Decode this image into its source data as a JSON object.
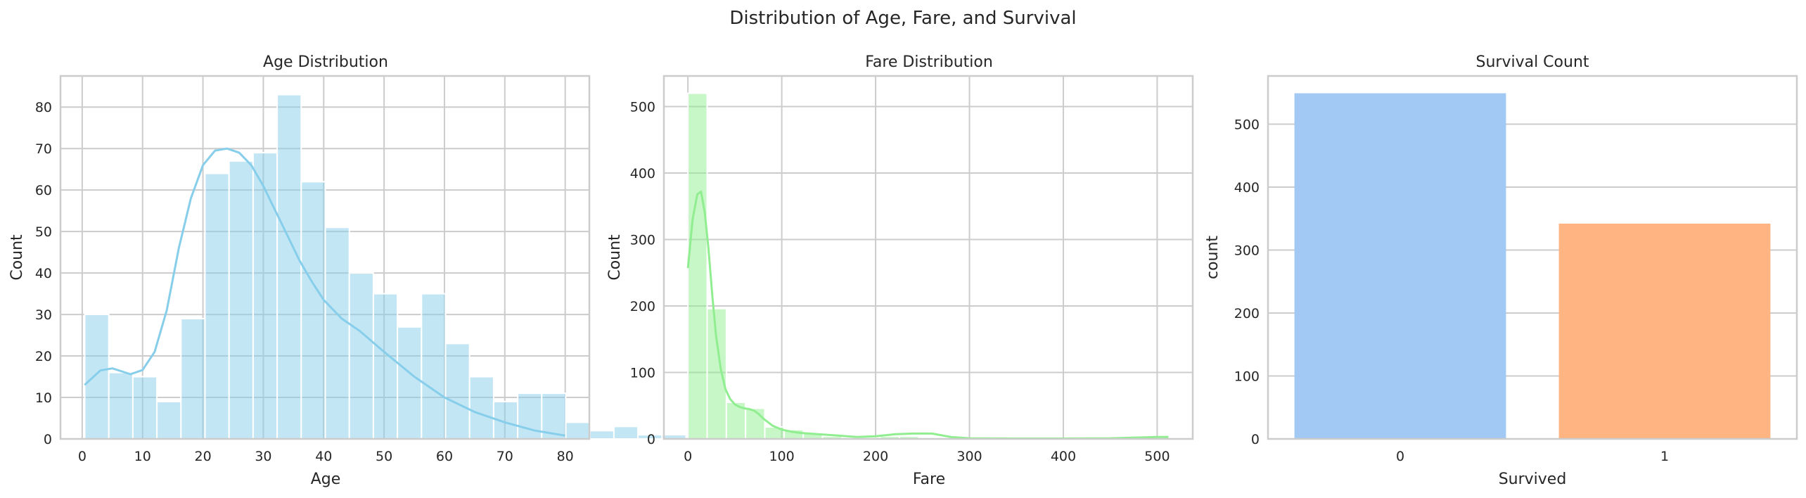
{
  "figure": {
    "suptitle": "Distribution of Age, Fare, and Survival"
  },
  "chart_data": [
    {
      "type": "bar",
      "subtype": "histogram",
      "title": "Age Distribution",
      "xlabel": "Age",
      "ylabel": "Count",
      "xlim": [
        -3.6,
        84.0
      ],
      "ylim": [
        0,
        87.5
      ],
      "xticks": [
        0,
        10,
        20,
        30,
        40,
        50,
        60,
        70,
        80
      ],
      "yticks": [
        0,
        10,
        20,
        30,
        40,
        50,
        60,
        70,
        80
      ],
      "bin_start": 0.42,
      "bin_width": 3.984,
      "values": [
        30,
        16,
        15,
        9,
        29,
        64,
        67,
        69,
        83,
        62,
        51,
        40,
        35,
        27,
        35,
        23,
        15,
        9,
        11,
        11,
        4,
        2,
        3,
        1,
        1
      ],
      "kde": {
        "x": [
          0.4,
          3,
          5,
          8,
          10,
          12,
          14,
          16,
          18,
          20,
          22,
          24,
          26,
          28,
          30,
          32,
          34,
          36,
          38,
          40,
          43,
          46,
          50,
          55,
          60,
          65,
          70,
          75,
          80
        ],
        "y": [
          13,
          16.5,
          17,
          15.6,
          16.6,
          21,
          31,
          46,
          58,
          66,
          69.5,
          70,
          69,
          66,
          61,
          55,
          49,
          43,
          38,
          33.5,
          29,
          26,
          21,
          15,
          10,
          6.5,
          4,
          2,
          0.8
        ]
      },
      "grid": true,
      "colors": {
        "bar": "#87ceeb",
        "bar_opacity": 0.5,
        "kde": "#87ceeb"
      }
    },
    {
      "type": "bar",
      "subtype": "histogram",
      "title": "Fare Distribution",
      "xlabel": "Fare",
      "ylabel": "Count",
      "xlim": [
        -25.6,
        537.9
      ],
      "ylim": [
        0,
        546
      ],
      "xticks": [
        0,
        100,
        200,
        300,
        400,
        500
      ],
      "yticks": [
        0,
        100,
        200,
        300,
        400,
        500
      ],
      "bin_start": 0,
      "bin_width": 20.49,
      "values": [
        520,
        196,
        55,
        46,
        18,
        14,
        9,
        4,
        1,
        1,
        4,
        4,
        2,
        1,
        0,
        0,
        0,
        0,
        0,
        0,
        0,
        0,
        0,
        0,
        3
      ],
      "kde": {
        "x": [
          0,
          5,
          10,
          14,
          18,
          22,
          26,
          30,
          35,
          40,
          45,
          50,
          55,
          60,
          65,
          70,
          75,
          80,
          90,
          100,
          110,
          120,
          140,
          160,
          180,
          200,
          220,
          240,
          260,
          280,
          300,
          350,
          400,
          450,
          500,
          512
        ],
        "y": [
          257,
          330,
          368,
          372,
          340,
          285,
          215,
          155,
          105,
          75,
          60,
          52,
          48,
          46,
          45,
          43,
          38,
          31,
          20,
          14,
          11,
          9,
          7,
          5,
          3,
          4,
          7,
          8,
          8,
          3,
          1,
          0.5,
          0.5,
          1,
          3,
          3
        ]
      },
      "grid": true,
      "colors": {
        "bar": "#90ee90",
        "bar_opacity": 0.5,
        "kde": "#90ee90"
      }
    },
    {
      "type": "bar",
      "subtype": "countplot",
      "title": "Survival Count",
      "xlabel": "Survived",
      "ylabel": "count",
      "categories": [
        "0",
        "1"
      ],
      "values": [
        549,
        342
      ],
      "ylim": [
        0,
        576.5
      ],
      "yticks": [
        0,
        100,
        200,
        300,
        400,
        500
      ],
      "grid": true,
      "colors": {
        "bars": [
          "#a1c9f4",
          "#ffb482"
        ]
      }
    }
  ]
}
